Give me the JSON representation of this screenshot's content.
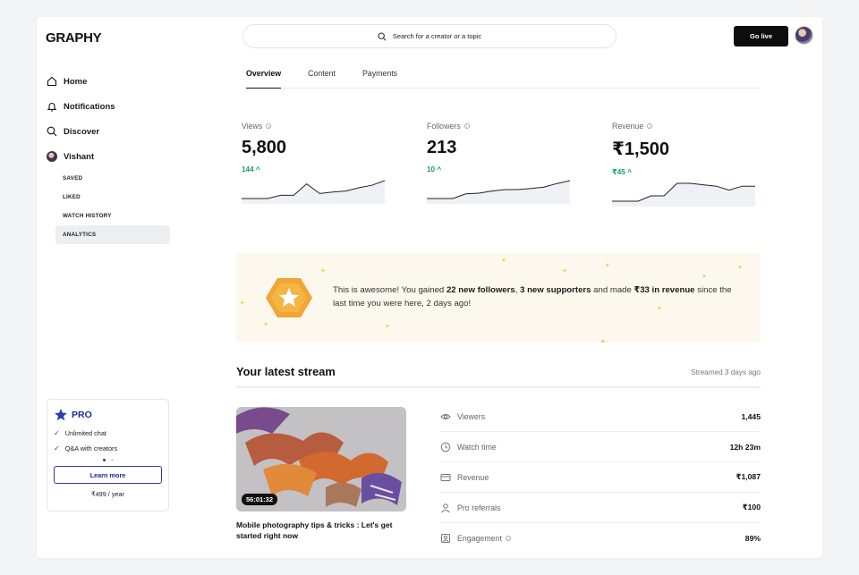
{
  "app": {
    "logo": "GRAPHY"
  },
  "header": {
    "search_placeholder": "Search for a creator or a topic",
    "go_live_label": "Go live"
  },
  "sidebar": {
    "items": [
      {
        "label": "Home",
        "icon": "home-icon"
      },
      {
        "label": "Notifications",
        "icon": "bell-icon"
      },
      {
        "label": "Discover",
        "icon": "search-icon"
      },
      {
        "label": "Vishant",
        "icon": "avatar"
      }
    ],
    "sub_items": [
      {
        "label": "SAVED",
        "active": false
      },
      {
        "label": "LIKED",
        "active": false
      },
      {
        "label": "WATCH HISTORY",
        "active": false
      },
      {
        "label": "ANALYTICS",
        "active": true
      }
    ]
  },
  "pro_card": {
    "title": "PRO",
    "features": [
      "Unlimited chat",
      "Q&A with creators"
    ],
    "cta": "Learn more",
    "price": "₹499 / year",
    "accent": "#1b2aa0"
  },
  "tabs": [
    {
      "label": "Overview",
      "active": true
    },
    {
      "label": "Content",
      "active": false
    },
    {
      "label": "Payments",
      "active": false
    }
  ],
  "stats": [
    {
      "label": "Views",
      "value": "5,800",
      "delta": "144 ^",
      "trend": [
        0,
        0,
        0,
        0.18,
        0.18,
        0.82,
        0.28,
        0.36,
        0.42,
        0.6,
        0.74,
        1
      ]
    },
    {
      "label": "Followers",
      "value": "213",
      "delta": "10 ^",
      "trend": [
        0,
        0,
        0,
        0.26,
        0.3,
        0.42,
        0.5,
        0.5,
        0.56,
        0.64,
        0.84,
        1
      ]
    },
    {
      "label": "Revenue",
      "value": "₹1,500",
      "delta": "₹45 ^",
      "trend": [
        0,
        0,
        0,
        0.3,
        0.3,
        1,
        1,
        0.92,
        0.84,
        0.62,
        0.84,
        0.84
      ]
    }
  ],
  "delta_color": "#17a35a",
  "banner": {
    "prefix": "This is awesome! You gained ",
    "followers": "22 new followers",
    "sep1": ", ",
    "supporters": "3 new supporters",
    "mid": " and made ",
    "revenue": "₹33 in revenue",
    "suffix": " since the last time you were here, 2 days ago!"
  },
  "stream": {
    "section_title": "Your latest stream",
    "streamed": "Streamed 3 days ago",
    "duration": "56:01:32",
    "title": "Mobile photography tips & tricks : Let's get started right now",
    "metrics": [
      {
        "label": "Viewers",
        "value": "1,445",
        "icon": "eye-icon"
      },
      {
        "label": "Watch time",
        "value": "12h 23m",
        "icon": "clock-icon"
      },
      {
        "label": "Revenue",
        "value": "₹1,087",
        "icon": "money-icon"
      },
      {
        "label": "Pro referrals",
        "value": "₹100",
        "icon": "user-icon"
      },
      {
        "label": "Engagement",
        "value": "89%",
        "icon": "engagement-icon",
        "info": true
      }
    ]
  }
}
